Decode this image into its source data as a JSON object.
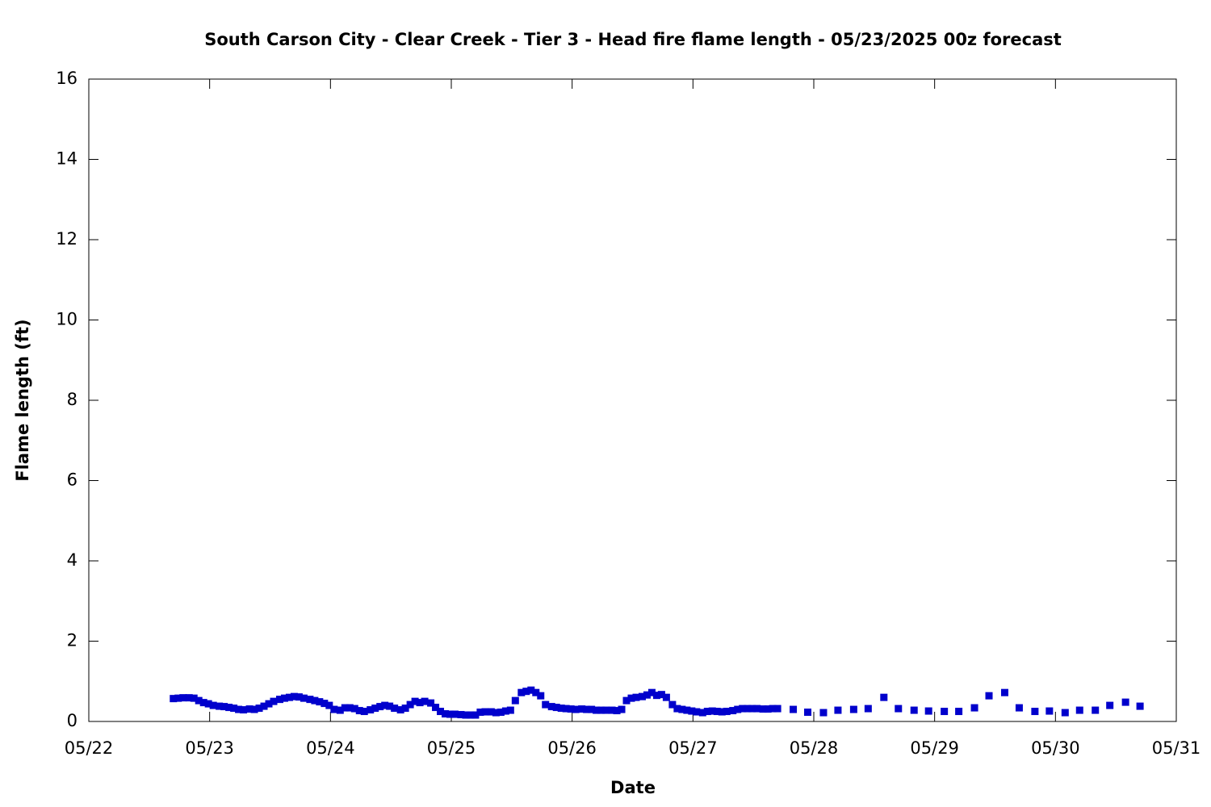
{
  "chart_data": {
    "type": "scatter",
    "title": "South Carson City - Clear Creek - Tier 3 - Head fire flame length - 05/23/2025 00z forecast",
    "x_label": "Date",
    "y_label": "Flame length (ft)",
    "color": "#0000cc",
    "xlim": [
      22,
      31
    ],
    "xticks": [
      {
        "value": 22,
        "label": "05/22"
      },
      {
        "value": 23,
        "label": "05/23"
      },
      {
        "value": 24,
        "label": "05/24"
      },
      {
        "value": 25,
        "label": "05/25"
      },
      {
        "value": 26,
        "label": "05/26"
      },
      {
        "value": 27,
        "label": "05/27"
      },
      {
        "value": 28,
        "label": "05/28"
      },
      {
        "value": 29,
        "label": "05/29"
      },
      {
        "value": 30,
        "label": "05/30"
      },
      {
        "value": 31,
        "label": "05/31"
      }
    ],
    "ylim": [
      0,
      16
    ],
    "yticks": [
      0,
      2,
      4,
      6,
      8,
      10,
      12,
      14,
      16
    ],
    "x": [
      22.7,
      22.74,
      22.78,
      22.83,
      22.87,
      22.91,
      22.95,
      22.99,
      23.03,
      23.08,
      23.12,
      23.16,
      23.2,
      23.24,
      23.28,
      23.33,
      23.37,
      23.41,
      23.45,
      23.49,
      23.53,
      23.58,
      23.62,
      23.66,
      23.7,
      23.74,
      23.78,
      23.83,
      23.87,
      23.91,
      23.95,
      23.99,
      24.03,
      24.08,
      24.12,
      24.16,
      24.2,
      24.24,
      24.28,
      24.33,
      24.37,
      24.41,
      24.45,
      24.49,
      24.53,
      24.58,
      24.62,
      24.66,
      24.7,
      24.74,
      24.78,
      24.83,
      24.87,
      24.91,
      24.95,
      24.99,
      25.03,
      25.08,
      25.12,
      25.16,
      25.2,
      25.24,
      25.28,
      25.33,
      25.37,
      25.41,
      25.45,
      25.49,
      25.53,
      25.58,
      25.62,
      25.66,
      25.7,
      25.74,
      25.78,
      25.83,
      25.87,
      25.91,
      25.95,
      25.99,
      26.03,
      26.08,
      26.12,
      26.16,
      26.2,
      26.24,
      26.28,
      26.33,
      26.37,
      26.41,
      26.45,
      26.49,
      26.53,
      26.58,
      26.62,
      26.66,
      26.7,
      26.74,
      26.78,
      26.83,
      26.87,
      26.91,
      26.95,
      26.99,
      27.03,
      27.08,
      27.12,
      27.16,
      27.2,
      27.24,
      27.28,
      27.33,
      27.37,
      27.41,
      27.45,
      27.49,
      27.53,
      27.58,
      27.62,
      27.66,
      27.7,
      27.83,
      27.95,
      28.08,
      28.2,
      28.33,
      28.45,
      28.58,
      28.7,
      28.83,
      28.95,
      29.08,
      29.2,
      29.33,
      29.45,
      29.58,
      29.7,
      29.83,
      29.95,
      30.08,
      30.2,
      30.33,
      30.45,
      30.58,
      30.7
    ],
    "values": [
      0.57,
      0.58,
      0.59,
      0.59,
      0.58,
      0.52,
      0.47,
      0.44,
      0.4,
      0.38,
      0.37,
      0.35,
      0.33,
      0.3,
      0.29,
      0.31,
      0.3,
      0.33,
      0.38,
      0.44,
      0.5,
      0.55,
      0.58,
      0.6,
      0.62,
      0.61,
      0.58,
      0.55,
      0.52,
      0.49,
      0.45,
      0.4,
      0.3,
      0.28,
      0.34,
      0.34,
      0.32,
      0.27,
      0.25,
      0.29,
      0.33,
      0.37,
      0.4,
      0.38,
      0.33,
      0.29,
      0.33,
      0.42,
      0.5,
      0.47,
      0.5,
      0.46,
      0.35,
      0.25,
      0.19,
      0.18,
      0.18,
      0.17,
      0.16,
      0.16,
      0.16,
      0.23,
      0.24,
      0.24,
      0.22,
      0.23,
      0.26,
      0.28,
      0.52,
      0.72,
      0.75,
      0.78,
      0.72,
      0.64,
      0.42,
      0.37,
      0.35,
      0.33,
      0.32,
      0.31,
      0.3,
      0.31,
      0.3,
      0.3,
      0.28,
      0.28,
      0.28,
      0.28,
      0.27,
      0.3,
      0.52,
      0.58,
      0.6,
      0.62,
      0.66,
      0.72,
      0.65,
      0.67,
      0.6,
      0.42,
      0.32,
      0.3,
      0.28,
      0.26,
      0.24,
      0.22,
      0.25,
      0.26,
      0.25,
      0.24,
      0.25,
      0.27,
      0.3,
      0.32,
      0.32,
      0.32,
      0.32,
      0.31,
      0.31,
      0.32,
      0.32,
      0.3,
      0.23,
      0.22,
      0.28,
      0.3,
      0.32,
      0.6,
      0.32,
      0.28,
      0.26,
      0.25,
      0.25,
      0.34,
      0.64,
      0.72,
      0.34,
      0.25,
      0.26,
      0.22,
      0.28,
      0.28,
      0.4,
      0.48,
      0.38
    ]
  }
}
